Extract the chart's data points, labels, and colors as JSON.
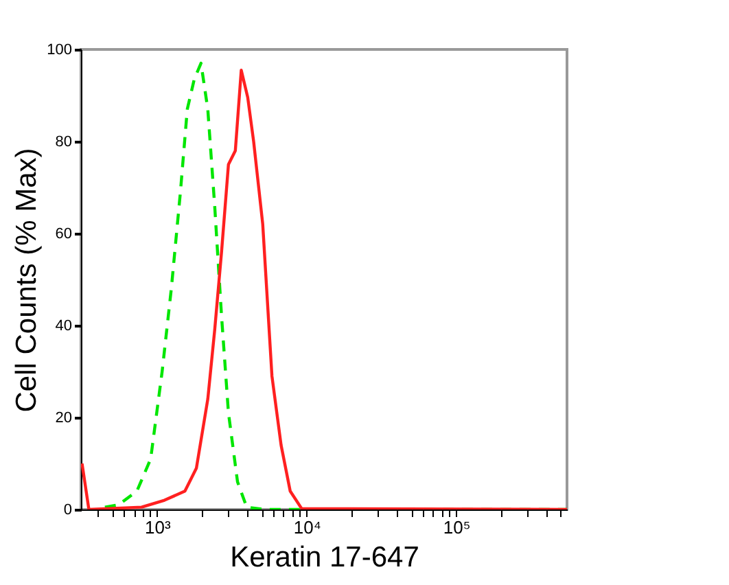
{
  "chart_data": {
    "type": "line",
    "ylabel": "Cell Counts (% Max)",
    "xlabel": "Keratin 17-647",
    "log": "x",
    "grid": false,
    "marker": "none",
    "xlim": [
      310,
      550000
    ],
    "ylim": [
      0,
      100
    ],
    "yticks": [
      0,
      20,
      40,
      60,
      80,
      100
    ],
    "xticks": [
      {
        "value": 400,
        "label": null
      },
      {
        "value": 500,
        "label": null
      },
      {
        "value": 600,
        "label": null
      },
      {
        "value": 700,
        "label": null
      },
      {
        "value": 800,
        "label": null
      },
      {
        "value": 900,
        "label": null
      },
      {
        "value": 1000,
        "label": "10³"
      },
      {
        "value": 2000,
        "label": null
      },
      {
        "value": 3000,
        "label": null
      },
      {
        "value": 4000,
        "label": null
      },
      {
        "value": 5000,
        "label": null
      },
      {
        "value": 6000,
        "label": null
      },
      {
        "value": 7000,
        "label": null
      },
      {
        "value": 8000,
        "label": null
      },
      {
        "value": 9000,
        "label": null
      },
      {
        "value": 10000,
        "label": "10⁴"
      },
      {
        "value": 20000,
        "label": null
      },
      {
        "value": 30000,
        "label": null
      },
      {
        "value": 40000,
        "label": null
      },
      {
        "value": 50000,
        "label": null
      },
      {
        "value": 60000,
        "label": null
      },
      {
        "value": 70000,
        "label": null
      },
      {
        "value": 80000,
        "label": null
      },
      {
        "value": 90000,
        "label": null
      },
      {
        "value": 100000,
        "label": "10⁵"
      },
      {
        "value": 200000,
        "label": null
      },
      {
        "value": 300000,
        "label": null
      },
      {
        "value": 400000,
        "label": null
      },
      {
        "value": 500000,
        "label": null
      }
    ],
    "series": [
      {
        "color": "#00e600",
        "line_style": "dashed",
        "x": [
          448,
          553,
          733,
          906,
          1081,
          1245,
          1432,
          1592,
          1771,
          1966,
          2183,
          2427,
          2698,
          3000,
          3450,
          3975,
          5270,
          550000
        ],
        "values": [
          0.5,
          1,
          4,
          11,
          30,
          48,
          69,
          87,
          93.5,
          97,
          87,
          66,
          42,
          21,
          6,
          0.5,
          0,
          0
        ]
      },
      {
        "color": "#ff2020",
        "line_style": "solid",
        "x": [
          315,
          350,
          788,
          1120,
          1535,
          1832,
          2183,
          2427,
          2698,
          3000,
          3335,
          3654,
          4035,
          4420,
          5085,
          5860,
          6745,
          7760,
          9250,
          550000
        ],
        "values": [
          10,
          0,
          0.5,
          2,
          4,
          9,
          24,
          39,
          56,
          75,
          78,
          95.5,
          89.6,
          80,
          62,
          29,
          14,
          4,
          0.2,
          0
        ]
      }
    ]
  }
}
